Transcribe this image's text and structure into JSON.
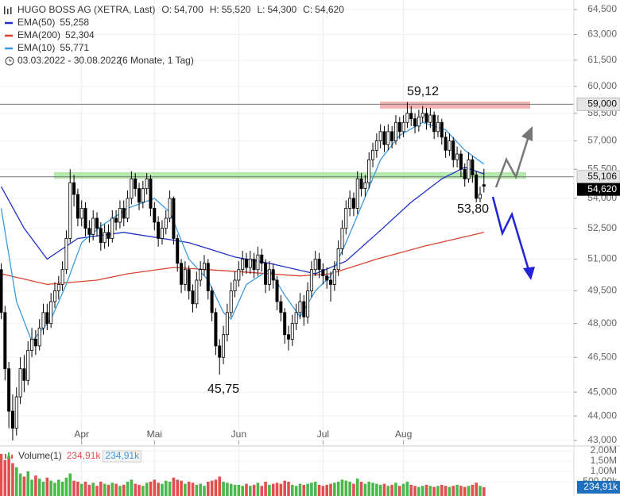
{
  "chart_data": {
    "type": "candlestick",
    "header": {
      "symbol": "HUGO BOSS AG (XETRA, Last)",
      "quote": [
        {
          "label": "O:",
          "value": "54,700"
        },
        {
          "label": "H:",
          "value": "55,520"
        },
        {
          "label": "L:",
          "value": "54,300"
        },
        {
          "label": "C:",
          "value": "54,620"
        }
      ],
      "period": "03.03.2022 - 30.08.2022",
      "interval": "(6 Monate, 1 Tag)"
    },
    "log_scale": true,
    "ylim": [
      43,
      64.5
    ],
    "yticks": [
      {
        "value": 43,
        "label": "43,000"
      },
      {
        "value": 44,
        "label": "44,000"
      },
      {
        "value": 45,
        "label": "45,000"
      },
      {
        "value": 46.5,
        "label": "46,500"
      },
      {
        "value": 48,
        "label": "48,000"
      },
      {
        "value": 49.5,
        "label": "49,500"
      },
      {
        "value": 51,
        "label": "51,000"
      },
      {
        "value": 52.5,
        "label": "52,500"
      },
      {
        "value": 54,
        "label": "54,000"
      },
      {
        "value": 55.5,
        "label": "55,500"
      },
      {
        "value": 57,
        "label": "57,000"
      },
      {
        "value": 58.5,
        "label": "58,500"
      },
      {
        "value": 60,
        "label": "60,000"
      },
      {
        "value": 61.5,
        "label": "61,500"
      },
      {
        "value": 63,
        "label": "63,000"
      },
      {
        "value": 64.5,
        "label": "64,500"
      }
    ],
    "xticks": [
      {
        "value": 21,
        "label": "Apr"
      },
      {
        "value": 40,
        "label": "Mai"
      },
      {
        "value": 62,
        "label": "Jun"
      },
      {
        "value": 84,
        "label": "Jul"
      },
      {
        "value": 105,
        "label": "Aug"
      }
    ],
    "grid": true,
    "up_color": "#ffffff",
    "down_color": "#000000",
    "open": [
      50.5,
      48.5,
      46.0,
      44.2,
      43.5,
      44.8,
      46.0,
      45.5,
      46.8,
      47.3,
      47.0,
      47.8,
      48.5,
      48.0,
      49.0,
      49.5,
      49.8,
      50.5,
      52.0,
      54.8,
      54.2,
      53.0,
      53.5,
      52.5,
      52.2,
      53.0,
      52.5,
      51.8,
      52.3,
      52.0,
      53.0,
      52.8,
      53.5,
      53.0,
      54.0,
      55.0,
      54.5,
      53.8,
      54.5,
      55.0,
      53.5,
      52.8,
      52.0,
      52.5,
      53.0,
      54.0,
      52.0,
      50.8,
      49.8,
      50.5,
      49.5,
      48.9,
      50.0,
      50.5,
      50.8,
      49.5,
      48.5,
      47.0,
      46.5,
      47.5,
      48.5,
      49.5,
      50.0,
      50.5,
      51.0,
      50.6,
      51.0,
      50.5,
      51.2,
      50.8,
      49.8,
      50.5,
      50.0,
      49.0,
      48.5,
      47.5,
      47.3,
      48.0,
      48.5,
      49.0,
      48.3,
      49.5,
      50.5,
      51.0,
      50.5,
      50.2,
      50.0,
      49.8,
      50.5,
      51.5,
      52.5,
      53.5,
      54.0,
      53.5,
      55.0,
      54.5,
      54.8,
      56.0,
      56.5,
      57.0,
      57.5,
      56.8,
      57.5,
      57.0,
      58.0,
      57.5,
      58.0,
      58.5,
      58.2,
      57.8,
      58.3,
      58.5,
      58.0,
      58.4,
      57.5,
      58.0,
      57.2,
      56.5,
      57.0,
      56.0,
      56.3,
      55.5,
      55.0,
      56.0,
      55.2,
      54.0,
      54.7
    ],
    "high": [
      50.8,
      48.8,
      46.3,
      44.9,
      45.2,
      46.5,
      46.6,
      47.2,
      47.8,
      47.7,
      48.2,
      48.9,
      48.9,
      49.4,
      49.9,
      50.2,
      50.9,
      52.4,
      55.5,
      55.2,
      54.5,
      53.9,
      53.8,
      52.9,
      53.4,
      53.3,
      52.8,
      52.7,
      52.7,
      53.4,
      53.4,
      53.9,
      53.9,
      54.4,
      55.4,
      55.3,
      54.8,
      54.9,
      55.3,
      55.2,
      53.8,
      53.1,
      52.9,
      53.4,
      54.4,
      54.1,
      52.2,
      51.0,
      50.9,
      50.7,
      49.8,
      50.4,
      50.9,
      51.2,
      51.0,
      49.7,
      48.7,
      47.3,
      47.9,
      48.9,
      49.9,
      50.4,
      50.9,
      51.4,
      51.3,
      51.4,
      51.3,
      51.6,
      51.5,
      51.0,
      50.9,
      50.8,
      50.2,
      49.3,
      48.7,
      47.9,
      48.4,
      48.9,
      49.4,
      49.3,
      49.9,
      50.9,
      51.4,
      51.3,
      50.8,
      50.6,
      50.4,
      50.9,
      51.9,
      52.9,
      53.9,
      54.4,
      54.3,
      55.4,
      55.3,
      55.2,
      56.4,
      56.9,
      57.4,
      57.9,
      57.8,
      57.9,
      57.8,
      58.4,
      58.3,
      58.4,
      59.12,
      58.9,
      58.5,
      58.7,
      58.9,
      58.8,
      58.8,
      58.6,
      58.4,
      58.2,
      57.5,
      57.4,
      57.2,
      56.7,
      56.5,
      55.8,
      56.4,
      56.2,
      55.4,
      54.6,
      55.52
    ],
    "low": [
      48.2,
      45.5,
      43.5,
      43.0,
      43.2,
      44.5,
      45.0,
      45.3,
      46.5,
      46.6,
      46.8,
      47.5,
      47.7,
      47.8,
      48.7,
      49.1,
      49.5,
      50.3,
      51.8,
      53.6,
      52.6,
      52.6,
      52.1,
      51.8,
      51.9,
      52.1,
      51.4,
      51.5,
      51.6,
      51.8,
      52.4,
      52.5,
      52.6,
      52.8,
      53.7,
      54.1,
      53.4,
      53.5,
      54.2,
      53.1,
      52.4,
      51.6,
      51.7,
      52.2,
      52.8,
      51.7,
      50.4,
      49.4,
      49.5,
      49.1,
      48.5,
      48.7,
      49.7,
      50.2,
      49.1,
      48.1,
      46.6,
      45.75,
      46.2,
      47.2,
      48.3,
      49.2,
      49.7,
      50.2,
      50.3,
      50.3,
      50.1,
      50.2,
      50.4,
      49.4,
      49.5,
      49.6,
      48.6,
      48.1,
      47.1,
      46.8,
      47.0,
      47.7,
      48.2,
      47.9,
      48.0,
      49.2,
      50.2,
      50.1,
      49.8,
      49.6,
      49.0,
      49.5,
      50.2,
      51.2,
      52.2,
      53.1,
      53.1,
      53.2,
      54.1,
      54.1,
      54.5,
      55.6,
      56.1,
      56.6,
      56.4,
      56.5,
      56.6,
      56.8,
      57.1,
      57.2,
      57.7,
      57.8,
      57.4,
      57.5,
      58.0,
      57.6,
      57.7,
      57.1,
      57.2,
      56.8,
      56.1,
      56.2,
      55.6,
      55.6,
      55.1,
      54.6,
      54.8,
      54.8,
      53.8,
      53.8,
      54.3
    ],
    "close": [
      48.5,
      46.0,
      44.2,
      43.5,
      44.8,
      46.0,
      45.5,
      46.8,
      47.3,
      47.0,
      47.8,
      48.5,
      48.0,
      49.0,
      49.5,
      49.8,
      50.5,
      52.0,
      54.8,
      54.2,
      53.0,
      53.5,
      52.5,
      52.2,
      53.0,
      52.5,
      51.8,
      52.3,
      52.0,
      53.0,
      52.8,
      53.5,
      53.0,
      54.0,
      55.0,
      54.5,
      53.8,
      54.5,
      55.0,
      53.5,
      52.8,
      52.0,
      52.5,
      53.0,
      54.0,
      52.0,
      50.8,
      49.8,
      50.5,
      49.5,
      48.9,
      50.0,
      50.5,
      50.8,
      49.5,
      48.5,
      47.0,
      46.5,
      47.5,
      48.5,
      49.5,
      50.0,
      50.5,
      51.0,
      50.6,
      51.0,
      50.5,
      51.2,
      50.8,
      49.8,
      50.5,
      50.0,
      49.0,
      48.5,
      47.5,
      47.3,
      48.0,
      48.5,
      49.0,
      48.3,
      49.5,
      50.5,
      51.0,
      50.5,
      50.2,
      50.0,
      49.8,
      50.5,
      51.5,
      52.5,
      53.5,
      54.0,
      53.5,
      55.0,
      54.5,
      54.8,
      56.0,
      56.5,
      57.0,
      57.5,
      56.8,
      57.5,
      57.0,
      58.0,
      57.5,
      58.0,
      58.5,
      58.2,
      57.8,
      58.3,
      58.5,
      58.0,
      58.4,
      57.5,
      58.0,
      57.2,
      56.5,
      57.0,
      56.0,
      56.3,
      55.5,
      55.0,
      56.0,
      55.2,
      54.0,
      54.2,
      54.62
    ],
    "series": [
      {
        "name": "EMA(50)",
        "last_label": "55,258",
        "color": "#1f2fc8",
        "x": [
          0,
          6,
          12,
          20,
          32,
          49,
          61,
          70,
          82,
          90,
          99,
          107,
          115,
          121,
          126
        ],
        "values": [
          54.6,
          52.5,
          51.0,
          52.0,
          52.3,
          51.8,
          51.1,
          50.8,
          50.3,
          50.9,
          52.4,
          53.8,
          55.0,
          55.6,
          55.26
        ]
      },
      {
        "name": "EMA(200)",
        "last_label": "52,304",
        "color": "#d9432f",
        "x": [
          0,
          12,
          25,
          33,
          45,
          62,
          78,
          86,
          98,
          110,
          126
        ],
        "values": [
          50.3,
          49.8,
          50.0,
          50.3,
          50.6,
          50.4,
          50.2,
          50.3,
          51.0,
          51.6,
          52.3
        ]
      },
      {
        "name": "EMA(10)",
        "last_label": "55,771",
        "color": "#3b9be0",
        "x": [
          0,
          4,
          8,
          13,
          17,
          21,
          26,
          33,
          40,
          44,
          49,
          54,
          58,
          60,
          64,
          70,
          74,
          78,
          82,
          86,
          90,
          94,
          99,
          104,
          110,
          116,
          121,
          126
        ],
        "values": [
          53.5,
          49.0,
          47.2,
          48.2,
          49.8,
          51.8,
          52.6,
          53.5,
          54.0,
          53.3,
          51.0,
          50.0,
          48.5,
          48.2,
          49.8,
          50.5,
          49.3,
          48.3,
          49.5,
          50.2,
          51.8,
          53.6,
          56.0,
          57.3,
          58.0,
          57.6,
          56.5,
          55.77
        ]
      }
    ],
    "zones": [
      {
        "low": 58.76,
        "high": 59.15,
        "color": "#f2a4a4"
      },
      {
        "low": 55.0,
        "high": 55.35,
        "color": "#a9e5a0"
      }
    ],
    "hlines": [
      {
        "value": 59,
        "label": "59,000",
        "color": "#777777"
      },
      {
        "value": 55.106,
        "label": "55,106",
        "color": "#777777"
      }
    ],
    "last_price": {
      "value": 54.62,
      "label": "54,620"
    },
    "annotations": [
      "59,12",
      "45,75",
      "53,80"
    ],
    "volume": {
      "name": "Volume(1)",
      "last_label": "234,91k",
      "up_color": "#4cb84c",
      "down_color": "#e05050",
      "ylim": [
        0,
        2
      ],
      "yticks": [
        {
          "value": 0.5,
          "label": "500,00k"
        },
        {
          "value": 1,
          "label": "1,00M"
        },
        {
          "value": 1.5,
          "label": "1,50M"
        },
        {
          "value": 2,
          "label": "2,00M"
        }
      ],
      "values": [
        1.85,
        1.55,
        1.75,
        1.4,
        1.2,
        0.9,
        0.75,
        1.0,
        0.6,
        0.8,
        0.65,
        0.5,
        0.7,
        0.55,
        0.45,
        0.6,
        0.5,
        0.7,
        0.9,
        0.55,
        0.5,
        0.4,
        0.5,
        0.35,
        0.45,
        0.3,
        0.5,
        0.4,
        0.35,
        0.45,
        0.4,
        0.3,
        0.35,
        0.5,
        0.6,
        0.4,
        0.35,
        0.3,
        0.45,
        0.5,
        0.6,
        0.45,
        0.4,
        0.55,
        0.5,
        0.7,
        0.6,
        0.55,
        0.4,
        0.5,
        0.45,
        0.35,
        0.4,
        0.3,
        0.5,
        0.55,
        0.6,
        0.75,
        0.5,
        0.45,
        0.4,
        0.35,
        0.35,
        0.3,
        0.4,
        0.3,
        0.35,
        0.45,
        0.3,
        0.5,
        0.35,
        0.4,
        0.45,
        0.4,
        0.55,
        0.5,
        0.35,
        0.3,
        0.4,
        0.35,
        0.4,
        0.45,
        0.5,
        0.35,
        0.3,
        0.35,
        0.4,
        0.45,
        0.5,
        0.6,
        0.55,
        0.5,
        0.4,
        0.65,
        0.5,
        0.4,
        0.5,
        0.45,
        0.4,
        0.35,
        0.4,
        0.3,
        0.35,
        0.45,
        0.3,
        0.4,
        0.5,
        0.35,
        0.3,
        0.25,
        0.3,
        0.35,
        0.3,
        0.25,
        0.3,
        0.35,
        0.3,
        0.25,
        0.3,
        0.35,
        0.3,
        0.25,
        0.3,
        0.35,
        0.45,
        0.3,
        0.235
      ]
    }
  }
}
